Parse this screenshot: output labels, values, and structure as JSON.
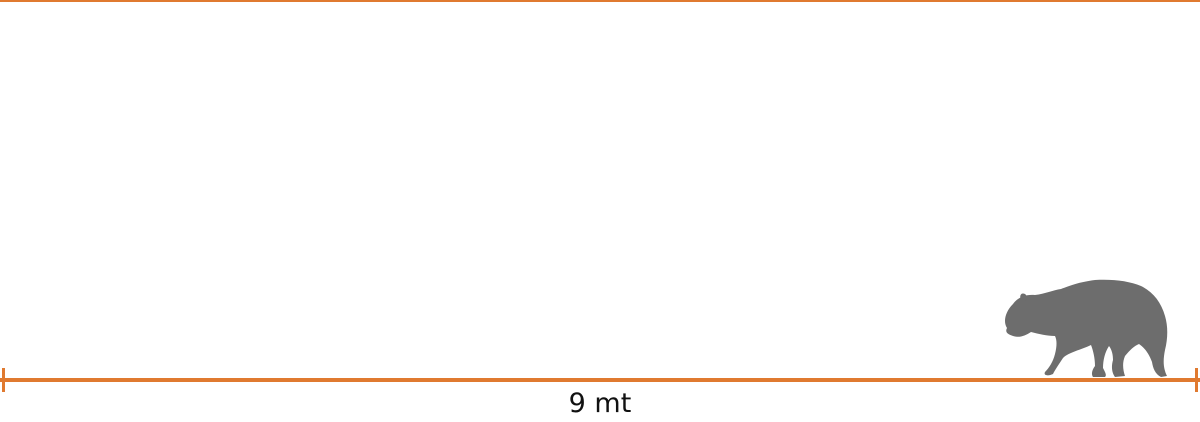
{
  "scale": {
    "label": "9 mt",
    "color": "#e07a30"
  },
  "silhouette": {
    "icon": "big-cat-silhouette-icon",
    "color": "#6d6d6d"
  }
}
